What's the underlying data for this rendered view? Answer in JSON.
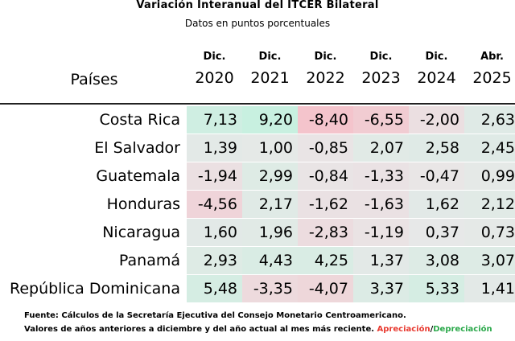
{
  "title": "Variación Interanual del ITCER Bilateral",
  "subtitle": "Datos en puntos porcentuales",
  "header": {
    "country_label": "Países"
  },
  "chart_data": {
    "type": "table",
    "title": "Variación Interanual del ITCER Bilateral",
    "subtitle": "Datos en puntos porcentuales",
    "columns": [
      {
        "month": "Dic.",
        "year": "2020"
      },
      {
        "month": "Dic.",
        "year": "2021"
      },
      {
        "month": "Dic.",
        "year": "2022"
      },
      {
        "month": "Dic.",
        "year": "2023"
      },
      {
        "month": "Dic.",
        "year": "2024"
      },
      {
        "month": "Abr.",
        "year": "2025"
      }
    ],
    "rows": [
      {
        "country": "Costa Rica",
        "values": [
          "7,13",
          "9,20",
          "-8,40",
          "-6,55",
          "-2,00",
          "2,63"
        ]
      },
      {
        "country": "El Salvador",
        "values": [
          "1,39",
          "1,00",
          "-0,85",
          "2,07",
          "2,58",
          "2,45"
        ]
      },
      {
        "country": "Guatemala",
        "values": [
          "-1,94",
          "2,99",
          "-0,84",
          "-1,33",
          "-0,47",
          "0,99"
        ]
      },
      {
        "country": "Honduras",
        "values": [
          "-4,56",
          "2,17",
          "-1,62",
          "-1,63",
          "1,62",
          "2,12"
        ]
      },
      {
        "country": "Nicaragua",
        "values": [
          "1,60",
          "1,96",
          "-2,83",
          "-1,19",
          "0,37",
          "0,73"
        ]
      },
      {
        "country": "Panamá",
        "values": [
          "2,93",
          "4,43",
          "4,25",
          "1,37",
          "3,08",
          "3,07"
        ]
      },
      {
        "country": "República Dominicana",
        "values": [
          "5,48",
          "-3,35",
          "-4,07",
          "3,37",
          "5,33",
          "1,41"
        ]
      }
    ],
    "color_scale": {
      "min_color": "#f4c4cc",
      "mid_color": "#e8e8e8",
      "max_color": "#c8f0e0"
    }
  },
  "footer": {
    "source": "Fuente: Cálculos de la Secretaría Ejecutiva del Consejo Monetario Centroamericano.",
    "note": "Valores de años anteriores a diciembre y del año actual al mes más reciente.",
    "apreciacion": "Apreciación",
    "separator": "/",
    "depreciacion": "Depreciación",
    "apreciacion_color": "#e8392f",
    "depreciacion_color": "#2aa84a"
  }
}
